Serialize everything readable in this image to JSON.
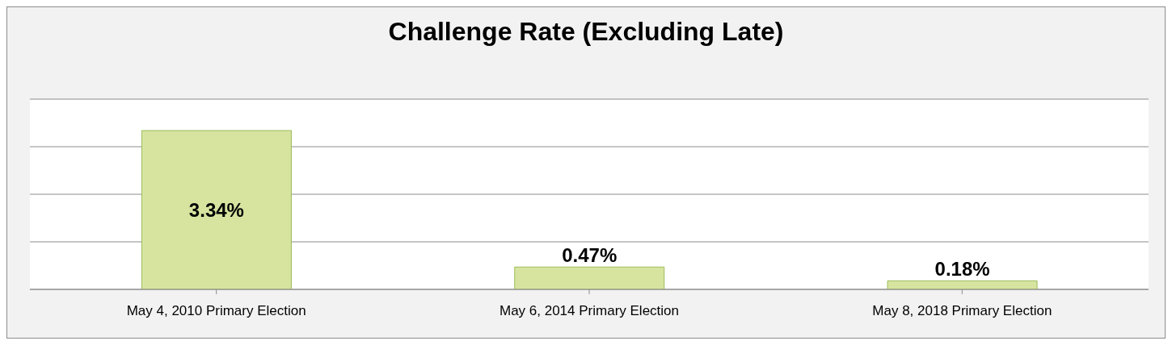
{
  "chart_data": {
    "type": "bar",
    "title": "Challenge Rate (Excluding Late)",
    "categories": [
      "May 4, 2010 Primary Election",
      "May 6, 2014 Primary Election",
      "May 8, 2018 Primary Election"
    ],
    "values": [
      3.34,
      0.47,
      0.18
    ],
    "value_labels": [
      "3.34%",
      "0.47%",
      "0.18%"
    ],
    "color": "#d7e4a0",
    "ylim": [
      0,
      4
    ],
    "yticks": [
      {
        "value": 0,
        "label": null
      },
      {
        "value": 1,
        "label": null
      },
      {
        "value": 2,
        "label": null
      },
      {
        "value": 3,
        "label": null
      },
      {
        "value": 4,
        "label": null
      }
    ],
    "grid": "y",
    "tick_labels": "x"
  }
}
